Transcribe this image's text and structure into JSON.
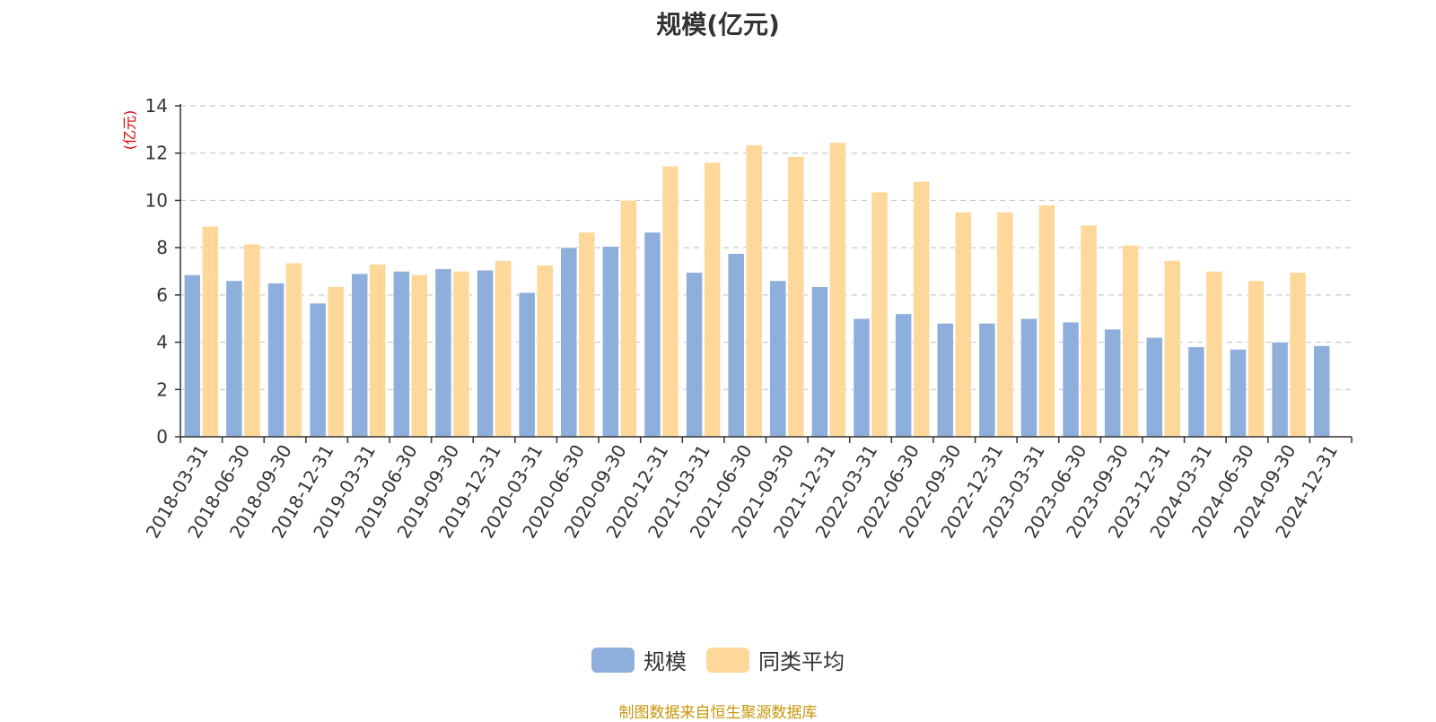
{
  "chart_data": {
    "type": "bar",
    "title": "规模(亿元)",
    "ylabel": "(亿元)",
    "ylim": [
      0,
      14
    ],
    "yticks": [
      0,
      2,
      4,
      6,
      8,
      10,
      12,
      14
    ],
    "grid": "horizontal-dashed",
    "legend_position": "bottom",
    "categories": [
      "2018-03-31",
      "2018-06-30",
      "2018-09-30",
      "2018-12-31",
      "2019-03-31",
      "2019-06-30",
      "2019-09-30",
      "2019-12-31",
      "2020-03-31",
      "2020-06-30",
      "2020-09-30",
      "2020-12-31",
      "2021-03-31",
      "2021-06-30",
      "2021-09-30",
      "2021-12-31",
      "2022-03-31",
      "2022-06-30",
      "2022-09-30",
      "2022-12-31",
      "2023-03-31",
      "2023-06-30",
      "2023-09-30",
      "2023-12-31",
      "2024-03-31",
      "2024-06-30",
      "2024-09-30",
      "2024-12-31"
    ],
    "series": [
      {
        "name": "规模",
        "color": "#8eaedb",
        "values": [
          6.85,
          6.6,
          6.5,
          5.65,
          6.9,
          7.0,
          7.1,
          7.05,
          6.1,
          8.0,
          8.05,
          8.65,
          6.95,
          7.75,
          6.6,
          6.35,
          5.0,
          5.2,
          4.8,
          4.8,
          5.0,
          4.85,
          4.55,
          4.2,
          3.8,
          3.7,
          4.0,
          3.85
        ]
      },
      {
        "name": "同类平均",
        "color": "#fed89a",
        "values": [
          8.9,
          8.15,
          7.35,
          6.35,
          7.3,
          6.85,
          7.0,
          7.45,
          7.25,
          8.65,
          10.0,
          11.45,
          11.6,
          12.35,
          11.85,
          12.45,
          10.35,
          10.8,
          9.5,
          9.5,
          9.8,
          8.95,
          8.1,
          7.45,
          7.0,
          6.6,
          6.95,
          null
        ]
      }
    ]
  },
  "source_note": "制图数据来自恒生聚源数据库"
}
